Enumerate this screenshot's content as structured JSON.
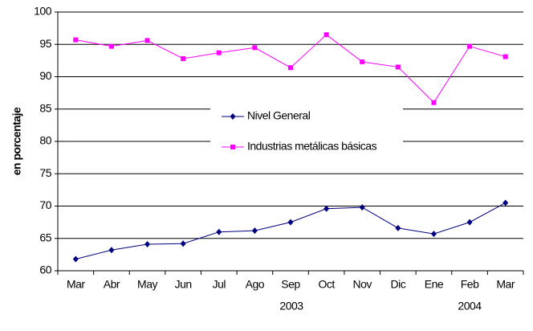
{
  "chart_data": {
    "type": "line",
    "y_label": "en porcentaje",
    "categories": [
      "Mar",
      "Abr",
      "May",
      "Jun",
      "Jul",
      "Ago",
      "Sep",
      "Oct",
      "Nov",
      "Dic",
      "Ene",
      "Feb",
      "Mar"
    ],
    "year_labels": [
      "2003",
      "2004"
    ],
    "series": [
      {
        "name": "Nivel General",
        "color": "#000080",
        "marker": "diamond",
        "values": [
          61.8,
          63.2,
          64.1,
          64.2,
          66.0,
          66.2,
          67.5,
          69.6,
          69.8,
          66.6,
          65.7,
          67.5,
          70.5
        ]
      },
      {
        "name": "Industrias metálicas básicas",
        "color": "#ff00ff",
        "marker": "square",
        "values": [
          95.7,
          94.7,
          95.6,
          92.8,
          93.7,
          94.5,
          91.4,
          96.5,
          92.3,
          91.5,
          86.0,
          94.7,
          93.1
        ]
      }
    ],
    "ylim": [
      60,
      100
    ],
    "yticks": [
      60,
      65,
      70,
      75,
      80,
      85,
      90,
      95,
      100
    ],
    "grid": true
  }
}
